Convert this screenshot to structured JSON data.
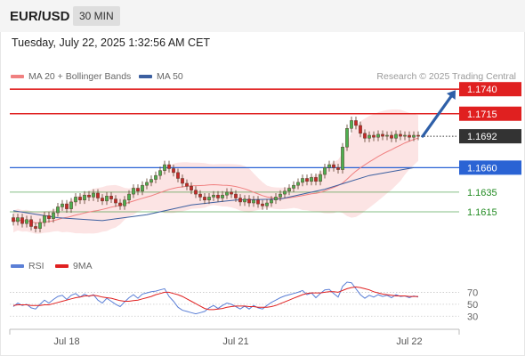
{
  "header": {
    "symbol": "EUR/USD",
    "timeframe": "30 MIN"
  },
  "datetime": "Tuesday, July 22, 2025 1:32:56 AM CET",
  "legend": {
    "ma20": {
      "label": "MA 20 + Bollinger Bands",
      "color": "#f08080"
    },
    "ma50": {
      "label": "MA 50",
      "color": "#3c5fa0"
    }
  },
  "copyright": "Research © 2025 Trading Central",
  "indicator_legend": {
    "rsi": {
      "label": "RSI",
      "color": "#5b7fd6"
    },
    "ma9": {
      "label": "9MA",
      "color": "#e02020"
    }
  },
  "chart_data": [
    {
      "type": "candlestick",
      "xlabel": "",
      "ylabel": "",
      "x_ticks": [
        "Jul 18",
        "Jul 21",
        "Jul 22"
      ],
      "ylim": [
        1.1585,
        1.1742
      ],
      "levels": [
        {
          "value": 1.174,
          "label": "1.1740",
          "kind": "resistance",
          "color": "#e02020"
        },
        {
          "value": 1.1715,
          "label": "1.1715",
          "kind": "resistance",
          "color": "#e02020"
        },
        {
          "value": 1.1692,
          "label": "1.1692",
          "kind": "last-price",
          "color": "#333333"
        },
        {
          "value": 1.166,
          "label": "1.1660",
          "kind": "pivot",
          "color": "#2a63d4"
        },
        {
          "value": 1.1635,
          "label": "1.1635",
          "kind": "support",
          "color": "#228b22"
        },
        {
          "value": 1.1615,
          "label": "1.1615",
          "kind": "support",
          "color": "#228b22"
        }
      ],
      "forecast_arrow": {
        "from": 1.1692,
        "to": 1.174,
        "color": "#2e5fa8"
      },
      "close": [
        1.1605,
        1.1609,
        1.1603,
        1.1607,
        1.16,
        1.1598,
        1.1604,
        1.1611,
        1.1608,
        1.1614,
        1.162,
        1.1623,
        1.1618,
        1.1625,
        1.163,
        1.1627,
        1.1632,
        1.163,
        1.1634,
        1.1629,
        1.1626,
        1.1631,
        1.1628,
        1.1624,
        1.1621,
        1.1627,
        1.1633,
        1.1639,
        1.1636,
        1.1642,
        1.1645,
        1.1648,
        1.1652,
        1.1657,
        1.1663,
        1.1659,
        1.1655,
        1.1649,
        1.1644,
        1.1641,
        1.1637,
        1.1633,
        1.163,
        1.1627,
        1.163,
        1.1632,
        1.1629,
        1.1632,
        1.1635,
        1.1633,
        1.1629,
        1.1625,
        1.1628,
        1.1624,
        1.1627,
        1.1623,
        1.1621,
        1.1624,
        1.1627,
        1.163,
        1.1633,
        1.1636,
        1.1639,
        1.1642,
        1.1645,
        1.1649,
        1.1646,
        1.165,
        1.1646,
        1.1653,
        1.166,
        1.1663,
        1.166,
        1.1658,
        1.1681,
        1.17,
        1.1708,
        1.1703,
        1.1695,
        1.169,
        1.1693,
        1.1691,
        1.1694,
        1.1692,
        1.1693,
        1.169,
        1.1694,
        1.1692,
        1.1693,
        1.1691,
        1.1693,
        1.1692
      ],
      "ma50_approx": [
        [
          0,
          1.1616
        ],
        [
          10,
          1.1609
        ],
        [
          20,
          1.1606
        ],
        [
          30,
          1.1612
        ],
        [
          40,
          1.1622
        ],
        [
          50,
          1.1627
        ],
        [
          60,
          1.1628
        ],
        [
          70,
          1.1638
        ],
        [
          80,
          1.1652
        ],
        [
          90,
          1.166
        ]
      ]
    },
    {
      "type": "line",
      "title": "",
      "series": [
        {
          "name": "RSI",
          "color": "#5b7fd6",
          "values": [
            46,
            52,
            48,
            50,
            44,
            42,
            50,
            57,
            52,
            58,
            63,
            65,
            58,
            65,
            68,
            62,
            67,
            63,
            66,
            57,
            52,
            60,
            55,
            50,
            46,
            54,
            61,
            66,
            60,
            67,
            69,
            71,
            72,
            74,
            76,
            63,
            55,
            45,
            40,
            38,
            36,
            34,
            36,
            38,
            44,
            48,
            43,
            48,
            52,
            50,
            46,
            42,
            47,
            42,
            48,
            44,
            42,
            48,
            53,
            57,
            61,
            64,
            66,
            68,
            70,
            73,
            66,
            69,
            61,
            68,
            74,
            75,
            68,
            62,
            80,
            87,
            86,
            76,
            66,
            60,
            65,
            62,
            66,
            63,
            65,
            61,
            66,
            63,
            64,
            61,
            64,
            62
          ]
        },
        {
          "name": "9MA",
          "color": "#e02020",
          "values": [
            48,
            49,
            49,
            49,
            48,
            48,
            48,
            49,
            49,
            51,
            53,
            55,
            57,
            59,
            61,
            62,
            64,
            64,
            65,
            64,
            62,
            61,
            60,
            58,
            56,
            55,
            55,
            56,
            57,
            59,
            61,
            63,
            66,
            68,
            70,
            70,
            68,
            66,
            63,
            59,
            55,
            51,
            47,
            43,
            41,
            41,
            42,
            43,
            45,
            46,
            47,
            47,
            47,
            46,
            46,
            45,
            45,
            45,
            46,
            48,
            51,
            54,
            57,
            60,
            63,
            66,
            68,
            69,
            69,
            69,
            70,
            71,
            71,
            70,
            73,
            76,
            78,
            79,
            78,
            76,
            74,
            71,
            69,
            67,
            66,
            65,
            64,
            64,
            64,
            63,
            63,
            63
          ]
        }
      ],
      "ylim": [
        20,
        90
      ],
      "y_ticks": [
        "70",
        "50",
        "30"
      ],
      "reference_lines": [
        70,
        50,
        30
      ]
    }
  ]
}
